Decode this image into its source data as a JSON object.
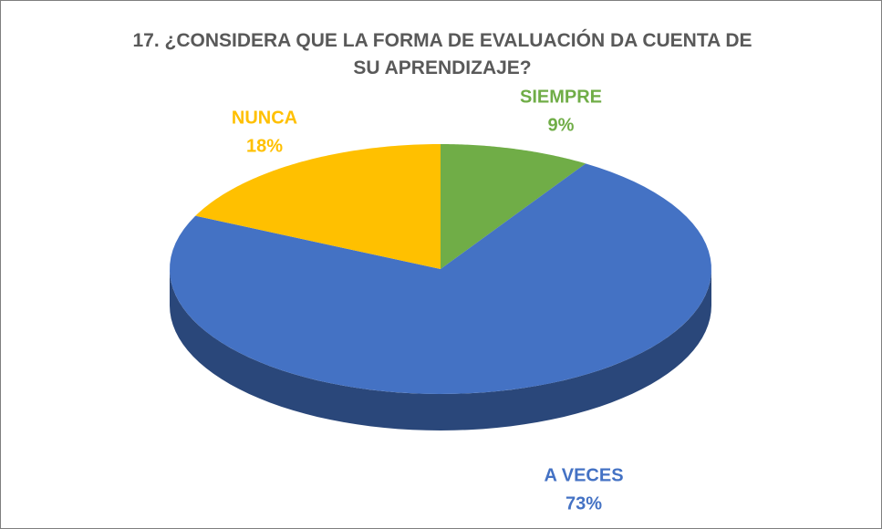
{
  "chart_data": {
    "type": "pie3d",
    "title": "17. ¿CONSIDERA QUE LA FORMA DE EVALUACIÓN DA CUENTA DE SU APRENDIZAJE?",
    "categories": [
      "SIEMPRE",
      "A VECES",
      "NUNCA"
    ],
    "values": [
      9,
      73,
      18
    ],
    "value_labels": [
      "9%",
      "73%",
      "18%"
    ],
    "colors": [
      "#70ad47",
      "#4472c4",
      "#ffc000"
    ]
  }
}
